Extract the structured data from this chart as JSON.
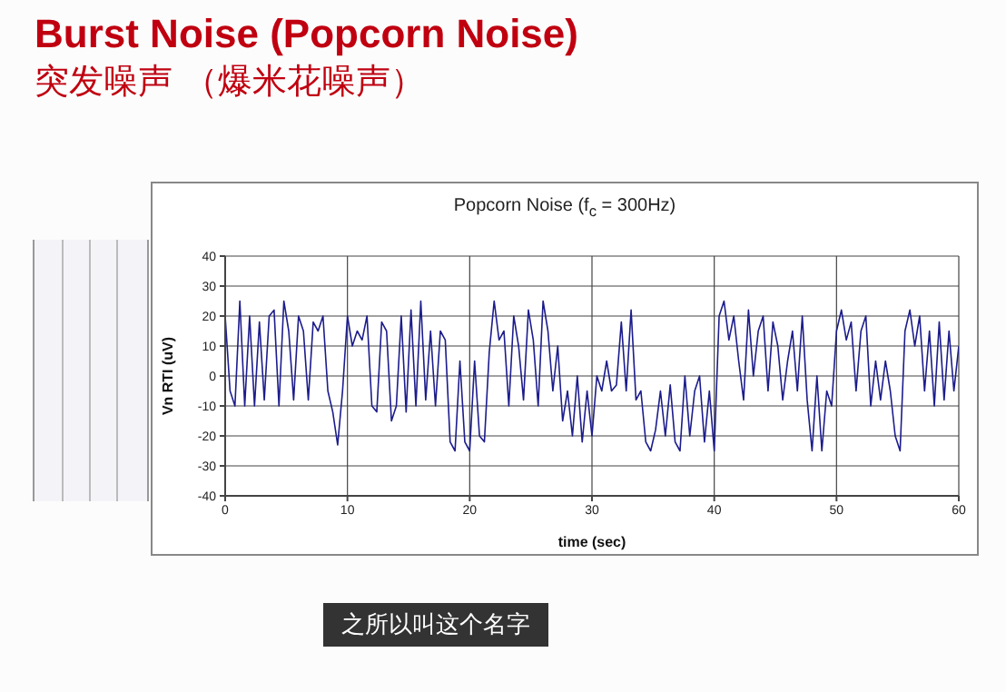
{
  "chart_data": {
    "type": "line",
    "title": "Burst Noise (Popcorn Noise)",
    "subtitle": "突发噪声 （爆米花噪声）",
    "annotations": [
      "Popcorn Noise (f$_{c}$ = 300Hz)",
      "之所以叫这个名字"
    ],
    "xlabel": "time (sec)",
    "ylabel": "Vn RTI (uV)",
    "xlim": [
      0,
      60
    ],
    "xticks": [
      0,
      10,
      20,
      30,
      40,
      50,
      60
    ],
    "ylim": [
      -40,
      40
    ],
    "yticks": [
      -40,
      -30,
      -20,
      -10,
      0,
      10,
      20,
      30,
      40
    ],
    "grid": true,
    "marker": "none",
    "line_style": "solid",
    "x": [
      0,
      0.4,
      0.8,
      1.2,
      1.6,
      2,
      2.4,
      2.8,
      3.2,
      3.6,
      4,
      4.4,
      4.8,
      5.2,
      5.6,
      6,
      6.4,
      6.8,
      7.2,
      7.6,
      8,
      8.4,
      8.8,
      9.2,
      9.6,
      10,
      10.4,
      10.8,
      11.2,
      11.6,
      12,
      12.4,
      12.8,
      13.2,
      13.6,
      14,
      14.4,
      14.8,
      15.2,
      15.6,
      16,
      16.4,
      16.8,
      17.2,
      17.6,
      18,
      18.4,
      18.8,
      19.2,
      19.6,
      20,
      20.4,
      20.8,
      21.2,
      21.6,
      22,
      22.4,
      22.8,
      23.2,
      23.6,
      24,
      24.4,
      24.8,
      25.2,
      25.6,
      26,
      26.4,
      26.8,
      27.2,
      27.6,
      28,
      28.4,
      28.8,
      29.2,
      29.6,
      30,
      30.4,
      30.8,
      31.2,
      31.6,
      32,
      32.4,
      32.8,
      33.2,
      33.6,
      34,
      34.4,
      34.8,
      35.2,
      35.6,
      36,
      36.4,
      36.8,
      37.2,
      37.6,
      38,
      38.4,
      38.8,
      39.2,
      39.6,
      40,
      40.4,
      40.8,
      41.2,
      41.6,
      42,
      42.4,
      42.8,
      43.2,
      43.6,
      44,
      44.4,
      44.8,
      45.2,
      45.6,
      46,
      46.4,
      46.8,
      47.2,
      47.6,
      48,
      48.4,
      48.8,
      49.2,
      49.6,
      50,
      50.4,
      50.8,
      51.2,
      51.6,
      52,
      52.4,
      52.8,
      53.2,
      53.6,
      54,
      54.4,
      54.8,
      55.2,
      55.6,
      56,
      56.4,
      56.8,
      57.2,
      57.6,
      58,
      58.4,
      58.8,
      59.2,
      59.6,
      60
    ],
    "series": [
      {
        "color": "#1c1c8c",
        "values": [
          20,
          -5,
          -10,
          25,
          -10,
          20,
          -10,
          18,
          -8,
          20,
          22,
          -10,
          25,
          15,
          -8,
          20,
          15,
          -8,
          18,
          15,
          20,
          -5,
          -12,
          -23,
          -5,
          20,
          10,
          15,
          12,
          20,
          -10,
          -12,
          18,
          15,
          -15,
          -10,
          20,
          -12,
          22,
          -10,
          25,
          -8,
          15,
          -10,
          15,
          12,
          -22,
          -25,
          5,
          -22,
          -25,
          5,
          -20,
          -22,
          8,
          25,
          12,
          15,
          -10,
          20,
          10,
          -8,
          22,
          12,
          -10,
          25,
          15,
          -5,
          10,
          -15,
          -5,
          -20,
          0,
          -22,
          -5,
          -20,
          0,
          -5,
          5,
          -5,
          -3,
          18,
          -5,
          22,
          -8,
          -5,
          -22,
          -25,
          -18,
          -5,
          -20,
          -3,
          -22,
          -25,
          0,
          -20,
          -5,
          0,
          -22,
          -5,
          -25,
          20,
          25,
          12,
          20,
          5,
          -8,
          22,
          0,
          15,
          20,
          -5,
          18,
          10,
          -8,
          5,
          15,
          -5,
          20,
          -8,
          -25,
          0,
          -25,
          -5,
          -10,
          15,
          22,
          12,
          18,
          -5,
          15,
          20,
          -10,
          5,
          -8,
          5,
          -5,
          -20,
          -25,
          15,
          22,
          10,
          20,
          -5,
          15,
          -10,
          18,
          -8,
          15,
          -5,
          10
        ]
      }
    ]
  }
}
